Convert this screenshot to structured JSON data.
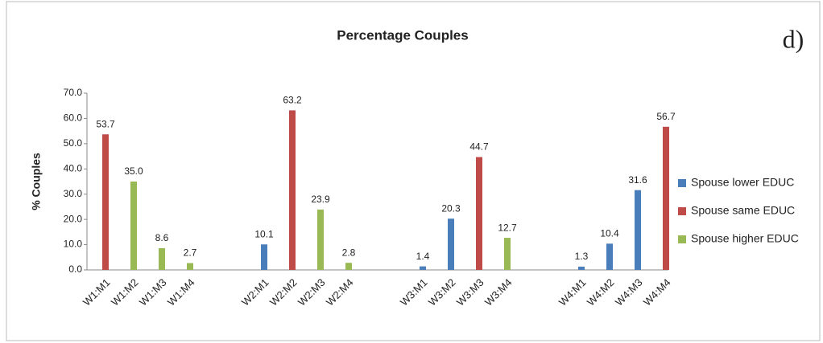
{
  "chart_data": {
    "type": "bar",
    "title": "Percentage Couples",
    "annotation": "d)",
    "y_label": "% Couples",
    "categories": [
      "W1:M1",
      "W1:M2",
      "W1:M3",
      "W1:M4",
      "W2:M1",
      "W2:M2",
      "W2:M3",
      "W2:M4",
      "W3:M1",
      "W3:M2",
      "W3:M3",
      "W3:M4",
      "W4:M1",
      "W4:M2",
      "W4:M3",
      "W4:M4"
    ],
    "series": [
      {
        "name": "Spouse lower EDUC",
        "color": "#4a7ebb",
        "values": [
          null,
          null,
          null,
          null,
          10.1,
          null,
          null,
          null,
          1.4,
          20.3,
          null,
          null,
          1.3,
          10.4,
          31.6,
          null
        ],
        "value_labels": [
          null,
          null,
          null,
          null,
          "10.1",
          null,
          null,
          null,
          "1.4",
          "20.3",
          null,
          null,
          "1.3",
          "10.4",
          "31.6",
          null
        ]
      },
      {
        "name": "Spouse same EDUC",
        "color": "#be4b48",
        "values": [
          53.7,
          null,
          null,
          null,
          null,
          63.2,
          null,
          null,
          null,
          null,
          44.7,
          null,
          null,
          null,
          null,
          56.7
        ],
        "value_labels": [
          "53.7",
          null,
          null,
          null,
          null,
          "63.2",
          null,
          null,
          null,
          null,
          "44.7",
          null,
          null,
          null,
          null,
          "56.7"
        ]
      },
      {
        "name": "Spouse higher EDUC",
        "color": "#98b954",
        "values": [
          null,
          35,
          8.6,
          2.7,
          null,
          null,
          23.9,
          2.8,
          null,
          null,
          null,
          12.7,
          null,
          null,
          null,
          null
        ],
        "value_labels": [
          null,
          "35.0",
          "8.6",
          "2.7",
          null,
          null,
          "23.9",
          "2.8",
          null,
          null,
          null,
          "12.7",
          null,
          null,
          null,
          null
        ]
      }
    ],
    "ylim": [
      0,
      70
    ],
    "yticks": [
      {
        "value": 0,
        "label": "0.0"
      },
      {
        "value": 10,
        "label": "10.0"
      },
      {
        "value": 20,
        "label": "20.0"
      },
      {
        "value": 30,
        "label": "30.0"
      },
      {
        "value": 40,
        "label": "40.0"
      },
      {
        "value": 50,
        "label": "50.0"
      },
      {
        "value": 60,
        "label": "60.0"
      },
      {
        "value": 70,
        "label": "70.0"
      }
    ],
    "legend": "right"
  }
}
